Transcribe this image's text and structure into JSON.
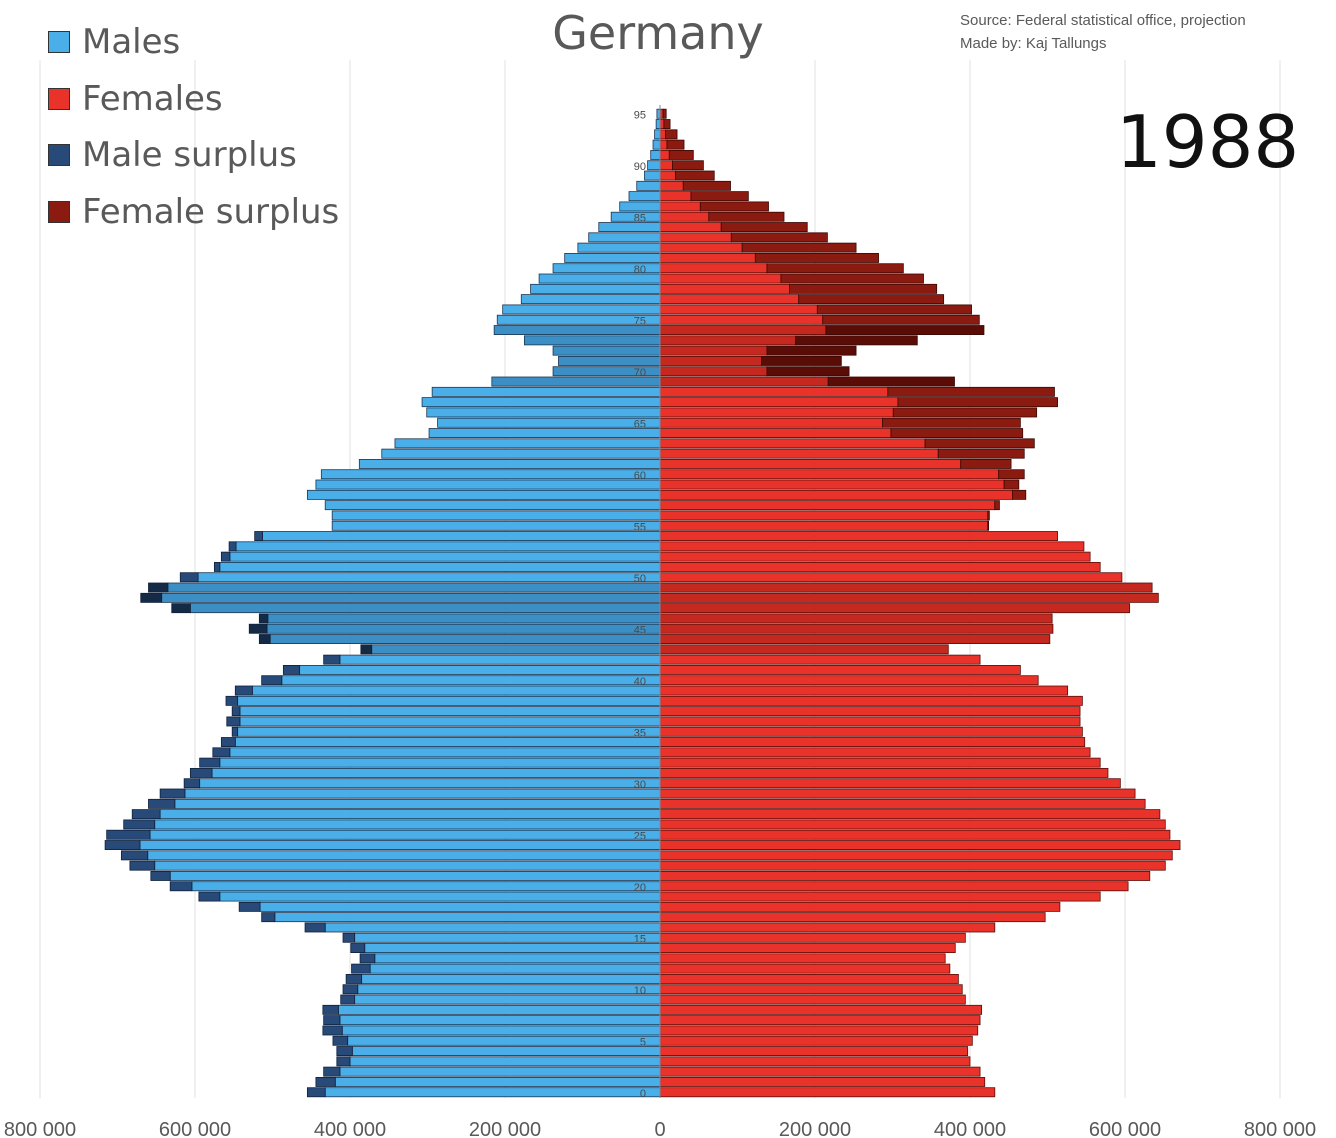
{
  "chart_data": {
    "type": "bar",
    "orientation": "horizontal",
    "subtype": "population-pyramid",
    "title": "Germany",
    "year": "1988",
    "source": "Source: Federal statistical office, projection",
    "author": "Made by: Kaj Tallungs",
    "legend": [
      "Males",
      "Females",
      "Male surplus",
      "Female surplus"
    ],
    "legend_placement": "top-left",
    "colors": {
      "males": "#4aaee8",
      "females": "#e8322a",
      "male_surplus": "#274a78",
      "female_surplus": "#8b1a10",
      "males_highlight": "#3b8fc4",
      "females_highlight": "#c4281f",
      "male_surplus_highlight": "#152a45",
      "female_surplus_highlight": "#5a0c06"
    },
    "highlight_age_ranges": [
      [
        43,
        49
      ],
      [
        69,
        74
      ]
    ],
    "xlim": [
      -800000,
      800000
    ],
    "x_ticks": [
      -800000,
      -600000,
      -400000,
      -200000,
      0,
      200000,
      400000,
      600000,
      800000
    ],
    "x_tick_labels": [
      "800 000",
      "600 000",
      "400 000",
      "200 000",
      "0",
      "200 000",
      "400 000",
      "600 000",
      "800 000"
    ],
    "y_ticks": [
      0,
      5,
      10,
      15,
      20,
      25,
      30,
      35,
      40,
      45,
      50,
      55,
      60,
      65,
      70,
      75,
      80,
      85,
      90,
      95
    ],
    "grid": "vertical",
    "ages": [
      0,
      1,
      2,
      3,
      4,
      5,
      6,
      7,
      8,
      9,
      10,
      11,
      12,
      13,
      14,
      15,
      16,
      17,
      18,
      19,
      20,
      21,
      22,
      23,
      24,
      25,
      26,
      27,
      28,
      29,
      30,
      31,
      32,
      33,
      34,
      35,
      36,
      37,
      38,
      39,
      40,
      41,
      42,
      43,
      44,
      45,
      46,
      47,
      48,
      49,
      50,
      51,
      52,
      53,
      54,
      55,
      56,
      57,
      58,
      59,
      60,
      61,
      62,
      63,
      64,
      65,
      66,
      67,
      68,
      69,
      70,
      71,
      72,
      73,
      74,
      75,
      76,
      77,
      78,
      79,
      80,
      81,
      82,
      83,
      84,
      85,
      86,
      87,
      88,
      89,
      90,
      91,
      92,
      93,
      94,
      95
    ],
    "series": [
      {
        "name": "Males",
        "values": [
          455000,
          444000,
          434000,
          417000,
          417000,
          422000,
          435000,
          434000,
          435000,
          412000,
          409000,
          405000,
          398000,
          387000,
          399000,
          409000,
          458000,
          514000,
          543000,
          595000,
          632000,
          657000,
          684000,
          695000,
          716000,
          714000,
          692000,
          681000,
          660000,
          645000,
          614000,
          606000,
          594000,
          577000,
          566000,
          552000,
          559000,
          552000,
          560000,
          548000,
          514000,
          486000,
          434000,
          386000,
          517000,
          530000,
          517000,
          630000,
          670000,
          660000,
          619000,
          575000,
          566000,
          556000,
          523000,
          423000,
          423000,
          432000,
          455000,
          444000,
          437000,
          388000,
          359000,
          342000,
          298000,
          287000,
          301000,
          307000,
          294000,
          217000,
          138000,
          131000,
          138000,
          175000,
          214000,
          210000,
          203000,
          179000,
          167000,
          156000,
          138000,
          123000,
          106000,
          92000,
          79000,
          63000,
          52000,
          40000,
          30000,
          20000,
          16000,
          12000,
          9000,
          7000,
          5000,
          4000
        ]
      },
      {
        "name": "Females",
        "values": [
          432000,
          419000,
          413000,
          400000,
          397000,
          403000,
          410000,
          413000,
          415000,
          394000,
          390000,
          385000,
          374000,
          368000,
          381000,
          394000,
          432000,
          497000,
          516000,
          568000,
          604000,
          632000,
          652000,
          661000,
          671000,
          658000,
          652000,
          645000,
          626000,
          613000,
          594000,
          578000,
          568000,
          555000,
          548000,
          545000,
          542000,
          542000,
          545000,
          526000,
          488000,
          465000,
          413000,
          372000,
          503000,
          507000,
          506000,
          606000,
          643000,
          635000,
          596000,
          568000,
          555000,
          547000,
          513000,
          424000,
          425000,
          438000,
          472000,
          463000,
          470000,
          453000,
          470000,
          483000,
          468000,
          465000,
          486000,
          513000,
          509000,
          380000,
          244000,
          234000,
          253000,
          332000,
          418000,
          412000,
          402000,
          366000,
          357000,
          340000,
          314000,
          282000,
          253000,
          216000,
          190000,
          160000,
          140000,
          114000,
          91000,
          70000,
          56000,
          43000,
          31000,
          22000,
          13000,
          8000
        ]
      }
    ]
  }
}
